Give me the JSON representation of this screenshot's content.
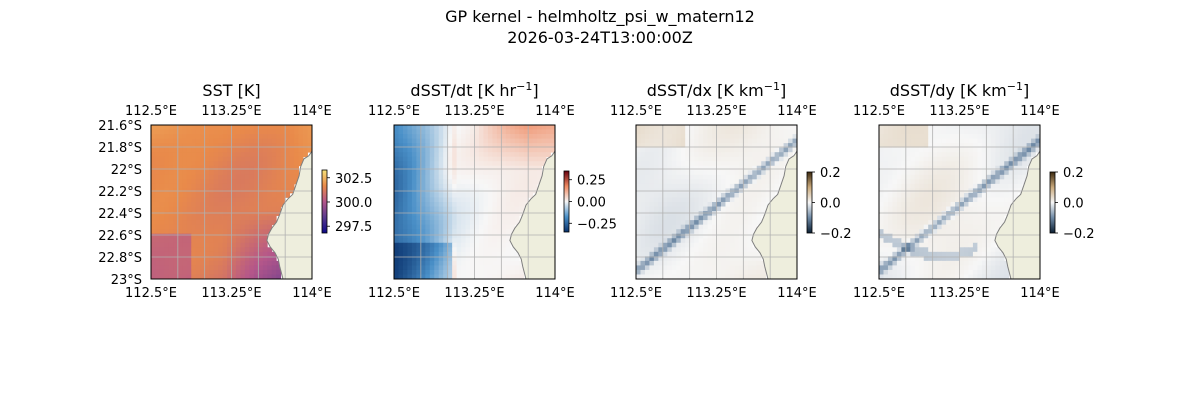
{
  "figure": {
    "title_line1": "GP kernel - helmholtz_psi_w_matern12",
    "title_line2": "2026-03-24T13:00:00Z"
  },
  "colors": {
    "land": "#eeeedd",
    "ocean_edge": "#a8c0e0",
    "coast": "#7f7f7f",
    "grid": "#b0b0b0"
  },
  "chart_data": [
    {
      "type": "heatmap",
      "title": "SST [K]",
      "lon_ticks": [
        "112.5°E",
        "113.25°E",
        "114°E"
      ],
      "lon_values": [
        112.5,
        113.25,
        114.0
      ],
      "lat_ticks": [
        "21.6°S",
        "21.8°S",
        "22°S",
        "22.2°S",
        "22.4°S",
        "22.6°S",
        "22.8°S",
        "23°S"
      ],
      "lat_values": [
        -21.6,
        -21.8,
        -22.0,
        -22.2,
        -22.4,
        -22.6,
        -22.8,
        -23.0
      ],
      "xlim": [
        112.5,
        114.0
      ],
      "ylim": [
        -23.0,
        -21.6
      ],
      "colormap": "plasma-like (purple to orange)",
      "colorbar": {
        "ticks": [
          "302.5",
          "300.0",
          "297.5"
        ],
        "values": [
          302.5,
          300.0,
          297.5
        ],
        "range": [
          296.8,
          303.3
        ]
      }
    },
    {
      "type": "heatmap",
      "title": "dSST/dt [K hr",
      "title_sup": "−1",
      "title_close": "]",
      "lon_ticks": [
        "112.5°E",
        "113.25°E",
        "114°E"
      ],
      "lon_values": [
        112.5,
        113.25,
        114.0
      ],
      "xlim": [
        112.5,
        114.0
      ],
      "ylim": [
        -23.0,
        -21.6
      ],
      "colormap": "diverging blue-white-red",
      "colorbar": {
        "ticks": [
          "0.25",
          "0.00",
          "−0.25"
        ],
        "values": [
          0.25,
          0.0,
          -0.25
        ],
        "range": [
          -0.35,
          0.35
        ]
      }
    },
    {
      "type": "heatmap",
      "title": "dSST/dx [K km",
      "title_sup": "−1",
      "title_close": "]",
      "lon_ticks": [
        "112.5°E",
        "113.25°E",
        "114°E"
      ],
      "lon_values": [
        112.5,
        113.25,
        114.0
      ],
      "xlim": [
        112.5,
        114.0
      ],
      "ylim": [
        -23.0,
        -21.6
      ],
      "colormap": "diverging slate-white-tan",
      "colorbar": {
        "ticks": [
          "0.2",
          "0.0",
          "−0.2"
        ],
        "values": [
          0.2,
          0.0,
          -0.2
        ],
        "range": [
          -0.2,
          0.2
        ]
      }
    },
    {
      "type": "heatmap",
      "title": "dSST/dy [K km",
      "title_sup": "−1",
      "title_close": "]",
      "lon_ticks": [
        "112.5°E",
        "113.25°E",
        "114°E"
      ],
      "lon_values": [
        112.5,
        113.25,
        114.0
      ],
      "xlim": [
        112.5,
        114.0
      ],
      "ylim": [
        -23.0,
        -21.6
      ],
      "colormap": "diverging slate-white-tan",
      "colorbar": {
        "ticks": [
          "0.2",
          "0.0",
          "−0.2"
        ],
        "values": [
          0.2,
          0.0,
          -0.2
        ],
        "range": [
          -0.2,
          0.2
        ]
      }
    }
  ]
}
